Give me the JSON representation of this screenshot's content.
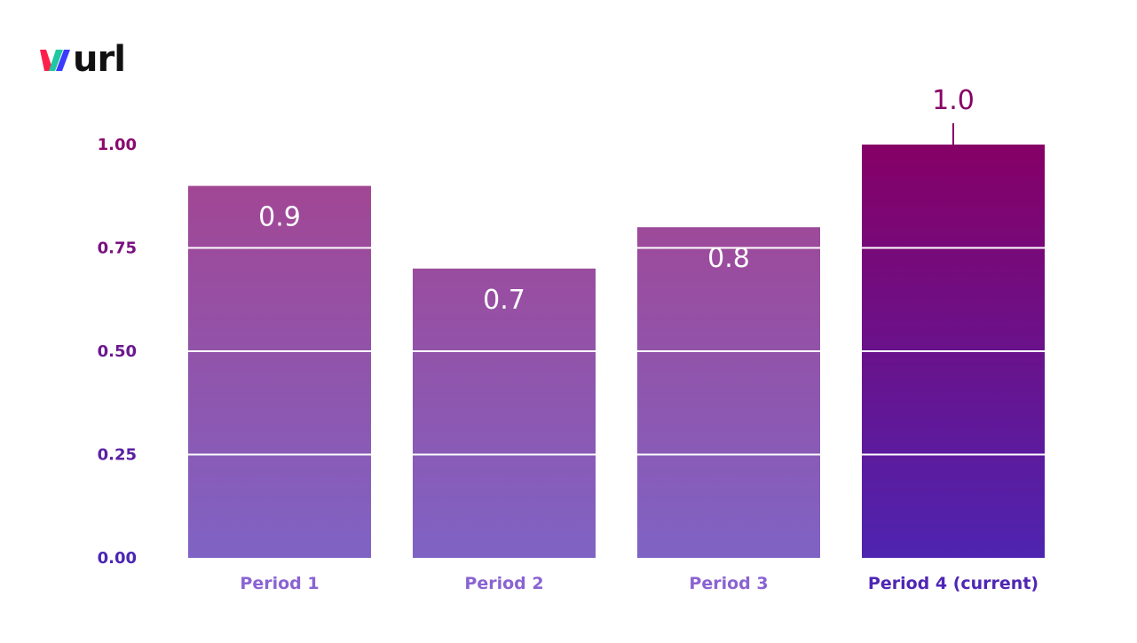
{
  "brand": {
    "logo_text": "wurl",
    "colors": {
      "w_left": "#ff1f4b",
      "w_mid": "#1fc8a0",
      "w_right": "#3b3bff",
      "text": "#111111"
    }
  },
  "chart_data": {
    "type": "bar",
    "title": "",
    "xlabel": "",
    "ylabel": "",
    "categories": [
      "Period 1",
      "Period 2",
      "Period 3",
      "Period 4 (current)"
    ],
    "values": [
      0.9,
      0.7,
      0.8,
      1.0
    ],
    "data_labels": [
      "0.9",
      "0.7",
      "0.8",
      "1.0"
    ],
    "ylim": [
      0,
      1
    ],
    "yticks": [
      0,
      0.25,
      0.5,
      0.75,
      1.0
    ],
    "ytick_labels": [
      "0.00",
      "0.25",
      "0.50",
      "0.75",
      "1.00"
    ],
    "grid": "white lines across bars",
    "highlight_index": 3,
    "colors": {
      "bar_top": "#a5438f",
      "bar_bottom": "#7f63c4",
      "highlight_top": "#860066",
      "highlight_bottom": "#4e24b0",
      "tick_label_top": "#8a0a6e",
      "tick_label_bottom": "#4b26b4",
      "category_label": "#8a63d2",
      "category_label_highlight": "#4f26b4",
      "data_label_inside": "#ffffff",
      "data_label_outside": "#860066"
    }
  }
}
